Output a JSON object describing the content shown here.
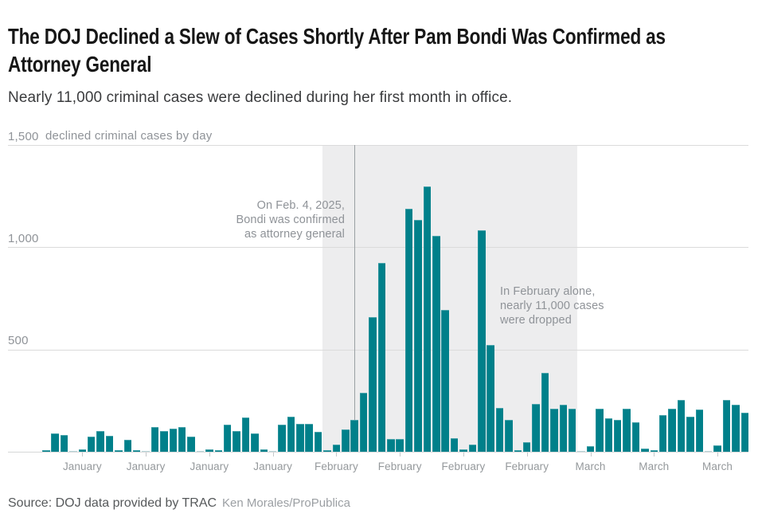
{
  "header": {
    "title_lines": [
      "The DOJ Declined a Slew of Cases Shortly After Pam Bondi Was Confirmed as",
      "Attorney General"
    ],
    "subtitle": "Nearly 11,000 criminal cases were declined during her first month in office."
  },
  "footer": {
    "source": "Source: DOJ data provided by TRAC",
    "credit": "Ken Morales/ProPublica"
  },
  "colors": {
    "bar": "#00808a",
    "bar_trace": "#b7d5d8",
    "band": "#ededee",
    "gridline": "#dbdbdb",
    "baseline": "#d6d7d8",
    "tick": "#c5c8ca",
    "event_line": "#9aa0a3",
    "annotation_text": "#8f9398",
    "axis_text": "#95999c",
    "y_label_text": "#8f9398",
    "source_text": "#56595b",
    "credit_text": "#9b9fa3"
  },
  "chart_data": {
    "type": "bar",
    "series_label": "declined criminal cases by day",
    "description": "Declined criminal cases per day, daily bars from early January through mid-March 2025",
    "ylim": [
      0,
      1500
    ],
    "grid": true,
    "yticks": [
      {
        "value": 500,
        "label": "500"
      },
      {
        "value": 1000,
        "label": "1,000"
      },
      {
        "value": 1500,
        "label": "1,500"
      }
    ],
    "values": [
      7,
      90,
      82,
      2,
      10,
      75,
      103,
      78,
      8,
      60,
      6,
      2,
      122,
      102,
      113,
      122,
      75,
      2,
      13,
      9,
      133,
      102,
      168,
      90,
      10,
      5,
      133,
      170,
      137,
      137,
      98,
      8,
      35,
      110,
      154,
      290,
      660,
      925,
      63,
      63,
      1190,
      1135,
      1297,
      1057,
      695,
      67,
      12,
      35,
      1085,
      522,
      216,
      157,
      7,
      47,
      232,
      385,
      212,
      230,
      212,
      5,
      28,
      212,
      165,
      154,
      210,
      145,
      16,
      8,
      180,
      212,
      252,
      172,
      208,
      2,
      30,
      255,
      228,
      192
    ],
    "xticks": [
      {
        "index": 4,
        "label": "January"
      },
      {
        "index": 11,
        "label": "January"
      },
      {
        "index": 18,
        "label": "January"
      },
      {
        "index": 25,
        "label": "January"
      },
      {
        "index": 32,
        "label": "February"
      },
      {
        "index": 39,
        "label": "February"
      },
      {
        "index": 46,
        "label": "February"
      },
      {
        "index": 53,
        "label": "February"
      },
      {
        "index": 60,
        "label": "March"
      },
      {
        "index": 67,
        "label": "March"
      },
      {
        "index": 74,
        "label": "March"
      }
    ],
    "highlight_band": {
      "start_index": 31,
      "end_index": 58
    },
    "event_line_index": 34,
    "annotations": [
      {
        "id": "bondi-confirmed",
        "align": "right",
        "text": "On Feb. 4, 2025,\nBondi was confirmed\nas attorney general"
      },
      {
        "id": "february-total",
        "align": "left",
        "text": "In February alone,\nnearly 11,000 cases\nwere dropped"
      }
    ]
  }
}
